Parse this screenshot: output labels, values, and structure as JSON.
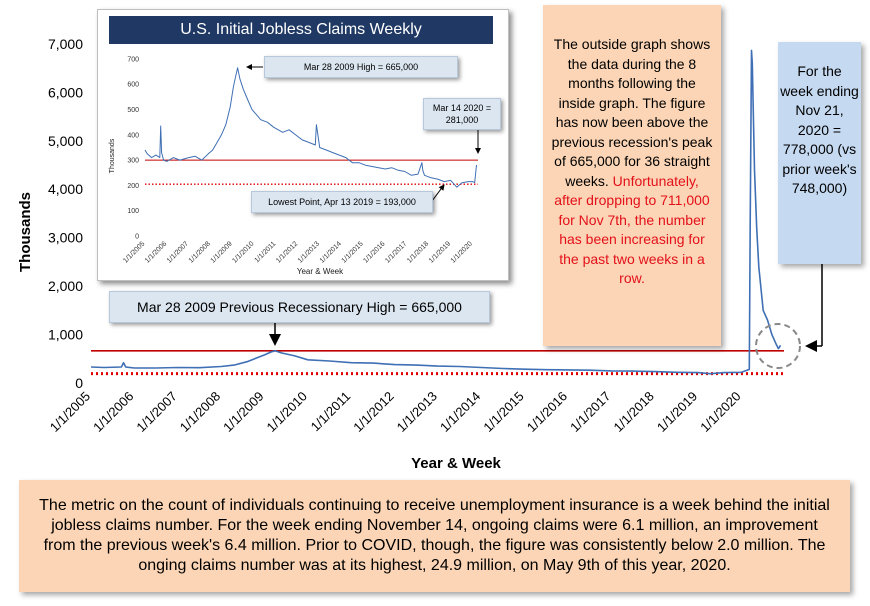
{
  "chart_data": [
    {
      "type": "line",
      "title": "",
      "xlabel": "Year & Week",
      "ylabel": "Thousands",
      "ylim": [
        0,
        7000
      ],
      "yticks": [
        "0",
        "1,000",
        "2,000",
        "3,000",
        "4,000",
        "5,000",
        "6,000",
        "7,000"
      ],
      "ytick_values": [
        0,
        1000,
        2000,
        3000,
        4000,
        5000,
        6000,
        7000
      ],
      "xticks": [
        "1/1/2005",
        "1/1/2006",
        "1/1/2007",
        "1/1/2008",
        "1/1/2009",
        "1/1/2010",
        "1/1/2011",
        "1/1/2012",
        "1/1/2013",
        "1/1/2014",
        "1/1/2015",
        "1/1/2016",
        "1/1/2017",
        "1/1/2018",
        "1/1/2019",
        "1/1/2020"
      ],
      "xlim": [
        2005.0,
        2020.98
      ],
      "grid": false,
      "series": [
        {
          "x": [
            2005.0,
            2005.3,
            2005.7,
            2005.75,
            2005.8,
            2006.0,
            2006.5,
            2007.0,
            2007.5,
            2008.0,
            2008.3,
            2008.6,
            2008.8,
            2009.0,
            2009.15,
            2009.24,
            2009.4,
            2009.7,
            2010.0,
            2010.5,
            2011.0,
            2011.5,
            2012.0,
            2012.5,
            2013.0,
            2013.5,
            2014.0,
            2014.5,
            2015.0,
            2015.5,
            2016.0,
            2016.5,
            2017.0,
            2017.5,
            2018.0,
            2018.5,
            2019.0,
            2019.28,
            2019.6,
            2020.0,
            2020.18,
            2020.2,
            2020.23,
            2020.25,
            2020.3,
            2020.35,
            2020.4,
            2020.5,
            2020.6,
            2020.7,
            2020.8,
            2020.85,
            2020.88,
            2020.9
          ],
          "y": [
            330,
            320,
            330,
            420,
            330,
            310,
            310,
            320,
            315,
            340,
            370,
            440,
            510,
            580,
            640,
            665,
            620,
            560,
            480,
            455,
            420,
            410,
            380,
            370,
            350,
            340,
            320,
            300,
            285,
            275,
            270,
            265,
            250,
            245,
            235,
            220,
            215,
            193,
            215,
            220,
            281,
            3300,
            6867,
            6600,
            4400,
            3200,
            2400,
            1500,
            1300,
            1000,
            800,
            711,
            748,
            778
          ]
        }
      ],
      "reference_lines": [
        {
          "y": 665,
          "style": "solid",
          "color": "#c00000"
        },
        {
          "y": 193,
          "style": "dotted",
          "color": "#e00000"
        }
      ],
      "annotations": {
        "high_callout": "Mar 28 2009 Previous Recessionary High = 665,000"
      }
    },
    {
      "type": "line",
      "title": "U.S. Initial Jobless Claims Weekly",
      "xlabel": "Year & Week",
      "ylabel": "Thousands",
      "ylim": [
        0,
        700
      ],
      "yticks": [
        "0",
        "100",
        "200",
        "300",
        "400",
        "500",
        "600",
        "700"
      ],
      "ytick_values": [
        0,
        100,
        200,
        300,
        400,
        500,
        600,
        700
      ],
      "xticks": [
        "1/1/2005",
        "1/1/2006",
        "1/1/2007",
        "1/1/2008",
        "1/1/2009",
        "1/1/2010",
        "1/1/2011",
        "1/1/2012",
        "1/1/2013",
        "1/1/2014",
        "1/1/2015",
        "1/1/2016",
        "1/1/2017",
        "1/1/2018",
        "1/1/2019",
        "1/1/2020"
      ],
      "xlim": [
        2005.0,
        2020.25
      ],
      "grid": false,
      "series": [
        {
          "x": [
            2005.0,
            2005.1,
            2005.3,
            2005.5,
            2005.68,
            2005.72,
            2005.76,
            2005.85,
            2006.0,
            2006.3,
            2006.6,
            2007.0,
            2007.3,
            2007.6,
            2007.9,
            2008.1,
            2008.3,
            2008.5,
            2008.7,
            2008.9,
            2009.05,
            2009.15,
            2009.24,
            2009.35,
            2009.5,
            2009.7,
            2009.9,
            2010.1,
            2010.3,
            2010.6,
            2010.9,
            2011.1,
            2011.3,
            2011.6,
            2011.9,
            2012.2,
            2012.5,
            2012.8,
            2012.85,
            2013.0,
            2013.3,
            2013.6,
            2013.9,
            2014.2,
            2014.5,
            2014.8,
            2015.1,
            2015.4,
            2015.7,
            2016.0,
            2016.3,
            2016.6,
            2016.9,
            2017.2,
            2017.5,
            2017.68,
            2017.72,
            2017.8,
            2018.1,
            2018.4,
            2018.7,
            2019.0,
            2019.28,
            2019.5,
            2019.8,
            2020.0,
            2020.1,
            2020.18
          ],
          "y": [
            340,
            325,
            310,
            320,
            310,
            435,
            330,
            300,
            295,
            310,
            300,
            310,
            315,
            300,
            325,
            340,
            370,
            400,
            440,
            510,
            590,
            630,
            665,
            620,
            580,
            540,
            500,
            480,
            460,
            450,
            430,
            420,
            410,
            420,
            400,
            380,
            370,
            360,
            440,
            350,
            340,
            330,
            320,
            310,
            290,
            290,
            280,
            275,
            270,
            265,
            270,
            260,
            255,
            240,
            245,
            290,
            260,
            240,
            230,
            225,
            215,
            220,
            193,
            210,
            215,
            215,
            211,
            281
          ]
        }
      ],
      "reference_lines": [
        {
          "y": 300,
          "style": "solid",
          "color": "#c00000"
        },
        {
          "y": 205,
          "style": "dotted",
          "color": "#e00000"
        }
      ],
      "annotations": {
        "high_callout": "Mar 28 2009 High = 665,000",
        "mar14_callout": "Mar 14 2020 = 281,000",
        "low_callout": "Lowest Point, Apr 13 2019 = 193,000"
      }
    }
  ],
  "notes": {
    "outside_graph_text": "The outside graph shows the data during the 8 months following the inside graph. The figure has now been above the previous recession's peak of 665,000 for 36 straight weeks.",
    "outside_graph_warning": "Unfortunately, after dropping to 711,000 for Nov 7th, the number has been increasing for the past two weeks in a row.",
    "latest_week": "For the week ending Nov 21, 2020 = 778,000 (vs prior week's 748,000)",
    "continuing_claims": "The metric on the count of individuals continuing to receive unemployment insurance is a week behind the initial jobless claims number. For the week ending November 14, ongoing claims were 6.1 million, an improvement from the previous week's 6.4 million. Prior to COVID, though, the figure was consistently below 2.0 million. The onging claims number was at its highest, 24.9 million, on May 9th of this year, 2020."
  },
  "colors": {
    "series": "#3f6fb4",
    "ref_solid": "#c00000",
    "ref_dotted": "#e00000",
    "inset_title_bg": "#1f3864",
    "note_bg": "#fbd5b5",
    "callout_bg": "#dce6f1",
    "week_box_bg": "#c5d9f1",
    "warning_text": "#e3101a"
  }
}
